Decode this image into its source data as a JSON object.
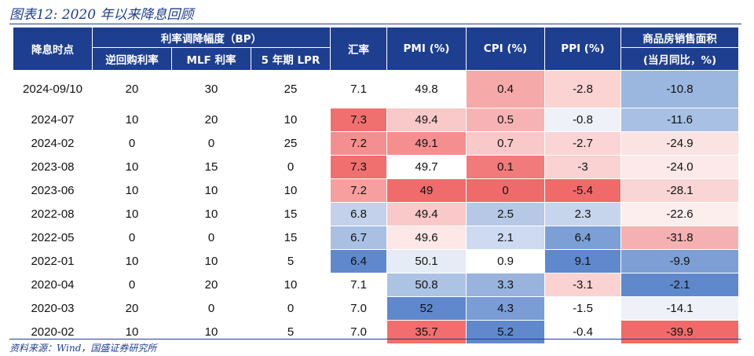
{
  "title": "图表12:  2020 年以来降息回顾",
  "source": "资料来源：Wind，国盛证券研究所",
  "header": {
    "date": "降息时点",
    "group": "利率调降幅度（BP）",
    "sub": [
      "逆回购利率",
      "MLF 利率",
      "5 年期 LPR"
    ],
    "fx": "汇率",
    "pmi": "PMI (%)",
    "cpi": "CPI (%)",
    "ppi": "PPI (%)",
    "prop1": "商品房销售面积",
    "prop2": "(当月同比，%)"
  },
  "rows": [
    {
      "date": "2024-09/10",
      "rr": "20",
      "mlf": "30",
      "lpr": "25",
      "fx": "7.1",
      "pmi": "49.8",
      "cpi": "0.4",
      "ppi": "-2.8",
      "prop": "-10.8"
    },
    {
      "date": "2024-07",
      "rr": "10",
      "mlf": "20",
      "lpr": "10",
      "fx": "7.3",
      "pmi": "49.4",
      "cpi": "0.5",
      "ppi": "-0.8",
      "prop": "-11.6"
    },
    {
      "date": "2024-02",
      "rr": "0",
      "mlf": "0",
      "lpr": "25",
      "fx": "7.2",
      "pmi": "49.1",
      "cpi": "0.7",
      "ppi": "-2.7",
      "prop": "-24.9"
    },
    {
      "date": "2023-08",
      "rr": "10",
      "mlf": "15",
      "lpr": "0",
      "fx": "7.3",
      "pmi": "49.7",
      "cpi": "0.1",
      "ppi": "-3",
      "prop": "-24.0"
    },
    {
      "date": "2023-06",
      "rr": "10",
      "mlf": "10",
      "lpr": "10",
      "fx": "7.2",
      "pmi": "49",
      "cpi": "0",
      "ppi": "-5.4",
      "prop": "-28.1"
    },
    {
      "date": "2022-08",
      "rr": "10",
      "mlf": "10",
      "lpr": "15",
      "fx": "6.8",
      "pmi": "49.4",
      "cpi": "2.5",
      "ppi": "2.3",
      "prop": "-22.6"
    },
    {
      "date": "2022-05",
      "rr": "0",
      "mlf": "0",
      "lpr": "15",
      "fx": "6.7",
      "pmi": "49.6",
      "cpi": "2.1",
      "ppi": "6.4",
      "prop": "-31.8"
    },
    {
      "date": "2022-01",
      "rr": "10",
      "mlf": "10",
      "lpr": "5",
      "fx": "6.4",
      "pmi": "50.1",
      "cpi": "0.9",
      "ppi": "9.1",
      "prop": "-9.9"
    },
    {
      "date": "2020-04",
      "rr": "0",
      "mlf": "20",
      "lpr": "10",
      "fx": "7.1",
      "pmi": "50.8",
      "cpi": "3.3",
      "ppi": "-3.1",
      "prop": "-2.1"
    },
    {
      "date": "2020-03",
      "rr": "20",
      "mlf": "0",
      "lpr": "0",
      "fx": "7.0",
      "pmi": "52",
      "cpi": "4.3",
      "ppi": "-1.5",
      "prop": "-14.1"
    },
    {
      "date": "2020-02",
      "rr": "10",
      "mlf": "10",
      "lpr": "5",
      "fx": "7.0",
      "pmi": "35.7",
      "cpi": "5.2",
      "ppi": "-0.4",
      "prop": "-39.9"
    }
  ],
  "cell_colors": [
    {
      "fx": "#ffffff",
      "pmi": "#ffffff",
      "cpi": "#f6a9a9",
      "ppi": "#fbd3d3",
      "prop": "#9cb7df"
    },
    {
      "fx": "#f07070",
      "pmi": "#f9c8c8",
      "cpi": "#f7b3b3",
      "ppi": "#eef1f8",
      "prop": "#a8c0e3"
    },
    {
      "fx": "#f48f8f",
      "pmi": "#f58e8e",
      "cpi": "#f9c9c9",
      "ppi": "#fbd5d5",
      "prop": "#fbe3e3"
    },
    {
      "fx": "#f07070",
      "pmi": "#ffffff",
      "cpi": "#f17a7a",
      "ppi": "#fad2d2",
      "prop": "#fde9e9"
    },
    {
      "fx": "#f79f9f",
      "pmi": "#f06b6b",
      "cpi": "#ef6b6b",
      "ppi": "#f06a6a",
      "prop": "#fad5d5"
    },
    {
      "fx": "#c3d2ea",
      "pmi": "#f9c8c8",
      "cpi": "#b6c8e6",
      "ppi": "#c6d4ec",
      "prop": "#fdeeee"
    },
    {
      "fx": "#a9c0e3",
      "pmi": "#fde7e7",
      "cpi": "#cddaef",
      "ppi": "#7c9fd5",
      "prop": "#f5b1b1"
    },
    {
      "fx": "#5f89cc",
      "pmi": "#e6ecf6",
      "cpi": "#ffffff",
      "ppi": "#5f89cc",
      "prop": "#7d9fd6"
    },
    {
      "fx": "#ffffff",
      "pmi": "#adc3e4",
      "cpi": "#98b3de",
      "ppi": "#fad2d2",
      "prop": "#5f89cc"
    },
    {
      "fx": "#ffffff",
      "pmi": "#5f89cc",
      "cpi": "#7b9dd5",
      "ppi": "#ffffff",
      "prop": "#eef1f8"
    },
    {
      "fx": "#ffffff",
      "pmi": "#f26e6e",
      "cpi": "#5f89cc",
      "ppi": "#ffffff",
      "prop": "#f06a6a"
    }
  ]
}
